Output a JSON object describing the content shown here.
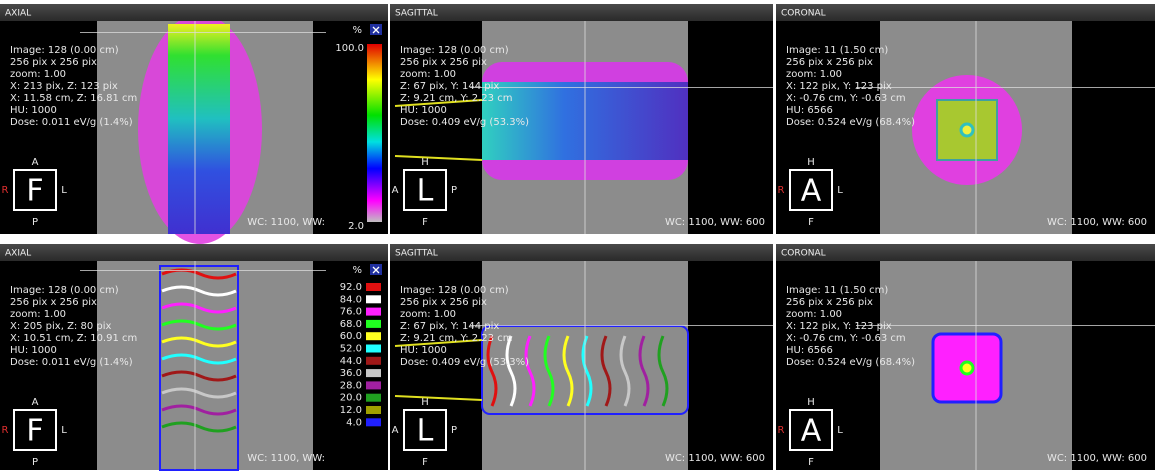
{
  "rows": [
    {
      "panels": [
        {
          "title": "AXIAL",
          "info": [
            "Image: 128 (0.00 cm)",
            "256 pix x 256 pix",
            "zoom: 1.00",
            "X: 213 pix, Z: 123 pix",
            "X: 11.58 cm, Z: 16.81 cm",
            "HU: 1000",
            "Dose: 0.011 eV/g (1.4%)"
          ],
          "orient": {
            "top": "A",
            "bottom": "P",
            "left": "R",
            "right": "L",
            "center": "F"
          },
          "window": "WC: 1100, WW:"
        },
        {
          "title": "SAGITTAL",
          "info": [
            "Image: 128 (0.00 cm)",
            "256 pix x 256 pix",
            "zoom: 1.00",
            "Z: 67 pix, Y: 144 pix",
            "Z: 9.21 cm, Y: 2.23 cm",
            "HU: 1000",
            "Dose: 0.409 eV/g (53.3%)"
          ],
          "orient": {
            "top": "H",
            "bottom": "F",
            "left": "A",
            "right": "P",
            "center": "L"
          },
          "window": "WC: 1100, WW: 600"
        },
        {
          "title": "CORONAL",
          "info": [
            "Image: 11 (1.50 cm)",
            "256 pix x 256 pix",
            "zoom: 1.00",
            "X: 122 pix, Y: 123 pix",
            "X: -0.76 cm, Y: -0.63 cm",
            "HU: 6566",
            "Dose: 0.524 eV/g (68.4%)"
          ],
          "orient": {
            "top": "H",
            "bottom": "F",
            "left": "R",
            "right": "L",
            "center": "A"
          },
          "window": "WC: 1100, WW: 600"
        }
      ],
      "legend": {
        "unit": "%",
        "levels": [
          {
            "label": "100.0"
          },
          {
            "label": "2.0"
          }
        ]
      }
    },
    {
      "panels": [
        {
          "title": "AXIAL",
          "info": [
            "Image: 128 (0.00 cm)",
            "256 pix x 256 pix",
            "zoom: 1.00",
            "X: 205 pix, Z: 80 pix",
            "X: 10.51 cm, Z: 10.91 cm",
            "HU: 1000",
            "Dose: 0.011 eV/g (1.4%)"
          ],
          "orient": {
            "top": "A",
            "bottom": "P",
            "left": "R",
            "right": "L",
            "center": "F"
          },
          "window": "WC: 1100, WW:"
        },
        {
          "title": "SAGITTAL",
          "info": [
            "Image: 128 (0.00 cm)",
            "256 pix x 256 pix",
            "zoom: 1.00",
            "Z: 67 pix, Y: 144 pix",
            "Z: 9.21 cm, Y: 2.23 cm",
            "HU: 1000",
            "Dose: 0.409 eV/g (53.3%)"
          ],
          "orient": {
            "top": "H",
            "bottom": "F",
            "left": "A",
            "right": "P",
            "center": "L"
          },
          "window": "WC: 1100, WW: 600"
        },
        {
          "title": "CORONAL",
          "info": [
            "Image: 11 (1.50 cm)",
            "256 pix x 256 pix",
            "zoom: 1.00",
            "X: 122 pix, Y: 123 pix",
            "X: -0.76 cm, Y: -0.63 cm",
            "HU: 6566",
            "Dose: 0.524 eV/g (68.4%)"
          ],
          "orient": {
            "top": "H",
            "bottom": "F",
            "left": "R",
            "right": "L",
            "center": "A"
          },
          "window": "WC: 1100, WW: 600"
        }
      ],
      "legend": {
        "unit": "%",
        "levels": [
          {
            "label": "92.0",
            "color": "#e01010"
          },
          {
            "label": "84.0",
            "color": "#ffffff"
          },
          {
            "label": "76.0",
            "color": "#ff20ff"
          },
          {
            "label": "68.0",
            "color": "#20ff20"
          },
          {
            "label": "60.0",
            "color": "#ffff20"
          },
          {
            "label": "52.0",
            "color": "#20ffff"
          },
          {
            "label": "44.0",
            "color": "#a01818"
          },
          {
            "label": "36.0",
            "color": "#c8c8c8"
          },
          {
            "label": "28.0",
            "color": "#a020a0"
          },
          {
            "label": "20.0",
            "color": "#20a020"
          },
          {
            "label": "12.0",
            "color": "#a0a000"
          },
          {
            "label": "4.0",
            "color": "#2020ff"
          }
        ]
      }
    }
  ]
}
